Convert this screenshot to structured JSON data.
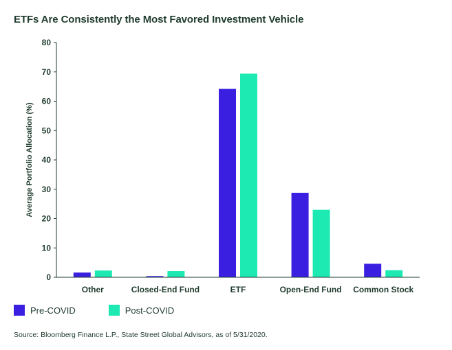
{
  "title": "ETFs Are Consistently the Most Favored Investment Vehicle",
  "source": "Source: Bloomberg Finance L.P., State Street Global Advisors, as of 5/31/2020.",
  "colors": {
    "pre": "#3a1fe0",
    "post": "#1de9b2",
    "text": "#1f3b2d"
  },
  "chart_data": {
    "type": "bar",
    "categories": [
      "Other",
      "Closed-End Fund",
      "ETF",
      "Open-End Fund",
      "Common Stock"
    ],
    "series": [
      {
        "name": "Pre-COVID",
        "values": [
          1.6,
          0.4,
          64.2,
          28.8,
          4.6
        ]
      },
      {
        "name": "Post-COVID",
        "values": [
          2.3,
          2.1,
          69.4,
          23.0,
          2.4
        ]
      }
    ],
    "xlabel": "",
    "ylabel": "Average Portfolio Allocation (%)",
    "ylim": [
      0,
      80
    ],
    "yticks": [
      0,
      10,
      20,
      30,
      40,
      50,
      60,
      70,
      80
    ],
    "grid": false,
    "legend": "bottom-left"
  }
}
